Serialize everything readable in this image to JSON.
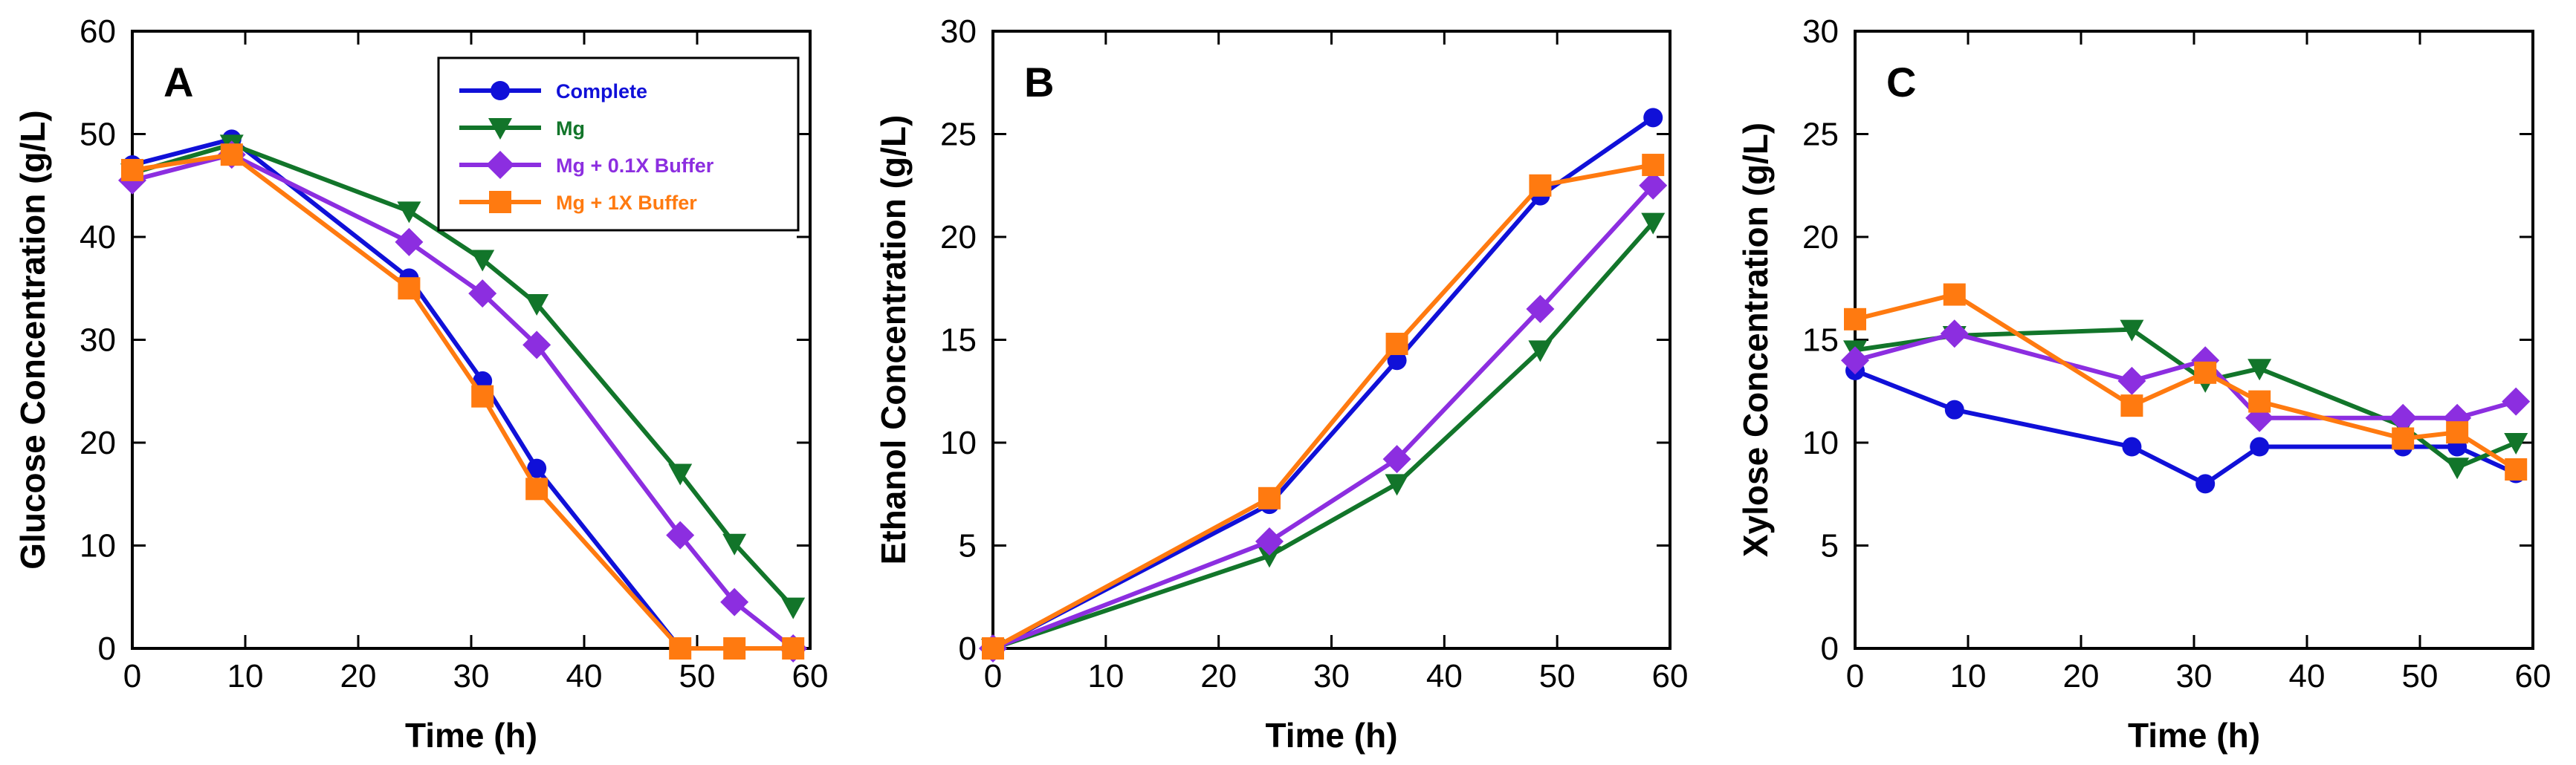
{
  "colors": {
    "Complete": "#1010d8",
    "Mg": "#12752a",
    "Mg + 0.1X Buffer": "#8c2ee0",
    "Mg + 1X Buffer": "#ff7a10"
  },
  "markers": {
    "Complete": "circle",
    "Mg": "triangle-down",
    "Mg + 0.1X Buffer": "diamond",
    "Mg + 1X Buffer": "square"
  },
  "legend": {
    "panel": "A",
    "placement": "top-right",
    "entries": [
      "Complete",
      "Mg",
      "Mg + 0.1X Buffer",
      "Mg + 1X Buffer"
    ]
  },
  "chart_data": [
    {
      "type": "line",
      "panel": "A",
      "title": "",
      "xlabel": "Time (h)",
      "ylabel": "Glucose Concentration (g/L)",
      "xlim": [
        0,
        60
      ],
      "ylim": [
        0,
        60
      ],
      "xticks": [
        0,
        10,
        20,
        30,
        40,
        50,
        60
      ],
      "yticks": [
        0,
        10,
        20,
        30,
        40,
        50,
        60
      ],
      "grid": false,
      "series": [
        {
          "name": "Complete",
          "x": [
            0,
            8.8,
            24.5,
            31,
            35.8,
            48.5,
            58.5
          ],
          "values": [
            47,
            49.5,
            36,
            26,
            17.5,
            0,
            0
          ]
        },
        {
          "name": "Mg",
          "x": [
            0,
            8.8,
            24.5,
            31,
            35.8,
            48.5,
            53.3,
            58.5
          ],
          "values": [
            46.2,
            49,
            42.5,
            37.8,
            33.5,
            17,
            10.2,
            4
          ]
        },
        {
          "name": "Mg + 0.1X Buffer",
          "x": [
            0,
            8.8,
            24.5,
            31,
            35.8,
            48.5,
            53.3,
            58.5
          ],
          "values": [
            45.5,
            48,
            39.5,
            34.5,
            29.5,
            11,
            4.5,
            0
          ]
        },
        {
          "name": "Mg + 1X Buffer",
          "x": [
            0,
            8.8,
            24.5,
            31,
            35.8,
            48.5,
            53.3,
            58.5
          ],
          "values": [
            46.5,
            48,
            35,
            24.5,
            15.5,
            0,
            0,
            0
          ]
        }
      ]
    },
    {
      "type": "line",
      "panel": "B",
      "title": "",
      "xlabel": "Time (h)",
      "ylabel": "Ethanol Concentration (g/L)",
      "xlim": [
        0,
        60
      ],
      "ylim": [
        0,
        30
      ],
      "xticks": [
        0,
        10,
        20,
        30,
        40,
        50,
        60
      ],
      "yticks": [
        0,
        5,
        10,
        15,
        20,
        25,
        30
      ],
      "grid": false,
      "series": [
        {
          "name": "Complete",
          "x": [
            0,
            24.5,
            35.8,
            48.5,
            58.5
          ],
          "values": [
            0,
            7,
            14,
            22,
            25.8
          ]
        },
        {
          "name": "Mg",
          "x": [
            0,
            24.5,
            35.8,
            48.5,
            58.5
          ],
          "values": [
            0,
            4.5,
            8,
            14.5,
            20.7
          ]
        },
        {
          "name": "Mg + 0.1X Buffer",
          "x": [
            0,
            24.5,
            35.8,
            48.5,
            58.5
          ],
          "values": [
            0,
            5.2,
            9.2,
            16.5,
            22.5
          ]
        },
        {
          "name": "Mg + 1X Buffer",
          "x": [
            0,
            24.5,
            35.8,
            48.5,
            58.5
          ],
          "values": [
            0,
            7.3,
            14.8,
            22.5,
            23.5
          ]
        }
      ]
    },
    {
      "type": "line",
      "panel": "C",
      "title": "",
      "xlabel": "Time (h)",
      "ylabel": "Xylose Concentration (g/L)",
      "xlim": [
        0,
        60
      ],
      "ylim": [
        0,
        30
      ],
      "xticks": [
        0,
        10,
        20,
        30,
        40,
        50,
        60
      ],
      "yticks": [
        0,
        5,
        10,
        15,
        20,
        25,
        30
      ],
      "grid": false,
      "series": [
        {
          "name": "Complete",
          "x": [
            0,
            8.8,
            24.5,
            31,
            35.8,
            48.5,
            53.3,
            58.5
          ],
          "values": [
            13.5,
            11.6,
            9.8,
            8,
            9.8,
            9.8,
            9.8,
            8.5
          ]
        },
        {
          "name": "Mg",
          "x": [
            0,
            8.8,
            24.5,
            31,
            35.8,
            48.5,
            53.3,
            58.5
          ],
          "values": [
            14.5,
            15.2,
            15.5,
            13,
            13.6,
            10.8,
            8.8,
            10
          ]
        },
        {
          "name": "Mg + 0.1X Buffer",
          "x": [
            0,
            8.8,
            24.5,
            31,
            35.8,
            48.5,
            53.3,
            58.5
          ],
          "values": [
            14,
            15.3,
            13,
            14,
            11.2,
            11.2,
            11.2,
            12
          ]
        },
        {
          "name": "Mg + 1X Buffer",
          "x": [
            0,
            8.8,
            24.5,
            31,
            35.8,
            48.5,
            53.3,
            58.5
          ],
          "values": [
            16,
            17.2,
            11.8,
            13.4,
            12,
            10.2,
            10.5,
            8.7
          ]
        }
      ]
    }
  ]
}
